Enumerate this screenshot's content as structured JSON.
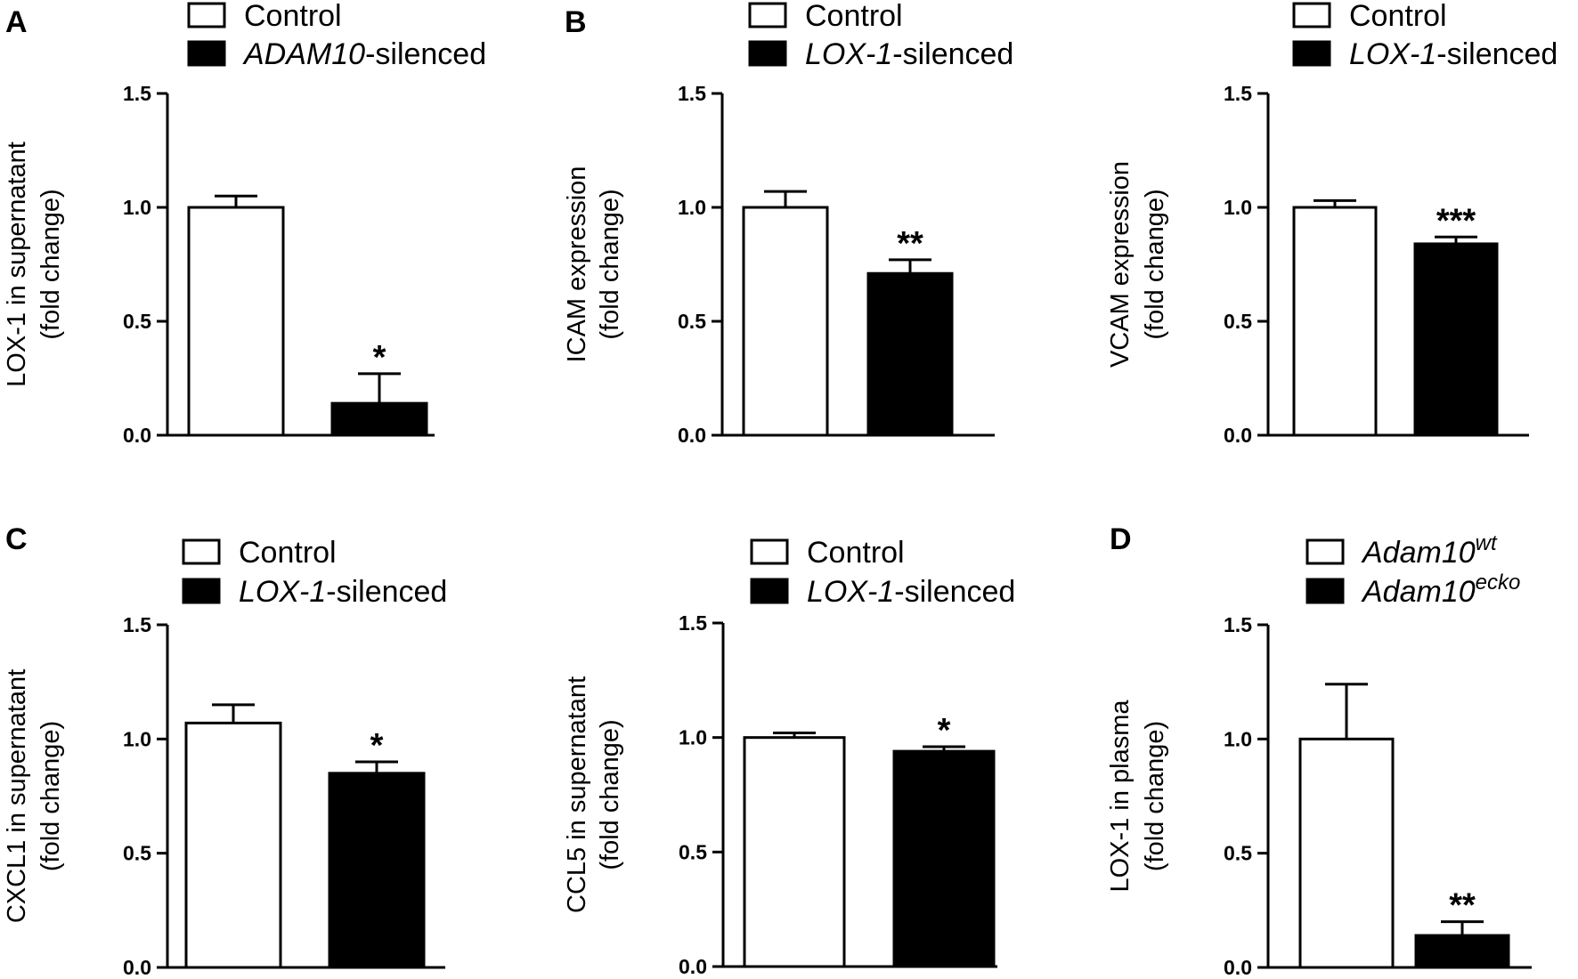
{
  "panel_letters": [
    "A",
    "B",
    "C",
    "D"
  ],
  "colors": {
    "control": "#ffffff",
    "treated": "#000000",
    "stroke": "#000000"
  },
  "chart_data": [
    {
      "type": "bar",
      "panel": "A",
      "ylabel": [
        "LOX-1 in supernatant",
        "(fold change)"
      ],
      "ylim": [
        0,
        1.5
      ],
      "ticks": [
        "0.0",
        "0.5",
        "1.0",
        "1.5"
      ],
      "legend": [
        {
          "italic": "",
          "text": "Control",
          "sup": "",
          "fill": "#ffffff"
        },
        {
          "italic": "ADAM10",
          "text": "-silenced",
          "sup": "",
          "fill": "#000000"
        }
      ],
      "values": [
        1.0,
        0.14
      ],
      "errors": [
        0.05,
        0.13
      ],
      "significance": "*"
    },
    {
      "type": "bar",
      "panel": "B",
      "ylabel": [
        "ICAM expression",
        "(fold change)"
      ],
      "ylim": [
        0,
        1.5
      ],
      "ticks": [
        "0.0",
        "0.5",
        "1.0",
        "1.5"
      ],
      "legend": [
        {
          "italic": "",
          "text": "Control",
          "sup": "",
          "fill": "#ffffff"
        },
        {
          "italic": "LOX-1",
          "text": "-silenced",
          "sup": "",
          "fill": "#000000"
        }
      ],
      "values": [
        1.0,
        0.71
      ],
      "errors": [
        0.07,
        0.06
      ],
      "significance": "**"
    },
    {
      "type": "bar",
      "panel": "",
      "ylabel": [
        "VCAM expression",
        "(fold change)"
      ],
      "ylim": [
        0,
        1.5
      ],
      "ticks": [
        "0.0",
        "0.5",
        "1.0",
        "1.5"
      ],
      "legend": [
        {
          "italic": "",
          "text": "Control",
          "sup": "",
          "fill": "#ffffff"
        },
        {
          "italic": "LOX-1",
          "text": "-silenced",
          "sup": "",
          "fill": "#000000"
        }
      ],
      "values": [
        1.0,
        0.84
      ],
      "errors": [
        0.03,
        0.03
      ],
      "significance": "***"
    },
    {
      "type": "bar",
      "panel": "C",
      "ylabel": [
        "CXCL1 in supernatant",
        "(fold change)"
      ],
      "ylim": [
        0,
        1.5
      ],
      "ticks": [
        "0.0",
        "0.5",
        "1.0",
        "1.5"
      ],
      "legend": [
        {
          "italic": "",
          "text": "Control",
          "sup": "",
          "fill": "#ffffff"
        },
        {
          "italic": "LOX-1",
          "text": "-silenced",
          "sup": "",
          "fill": "#000000"
        }
      ],
      "values": [
        1.07,
        0.85
      ],
      "errors": [
        0.08,
        0.05
      ],
      "significance": "*"
    },
    {
      "type": "bar",
      "panel": "",
      "ylabel": [
        "CCL5 in supernatant",
        "(fold change)"
      ],
      "ylim": [
        0,
        1.5
      ],
      "ticks": [
        "0.0",
        "0.5",
        "1.0",
        "1.5"
      ],
      "legend": [
        {
          "italic": "",
          "text": "Control",
          "sup": "",
          "fill": "#ffffff"
        },
        {
          "italic": "LOX-1",
          "text": "-silenced",
          "sup": "",
          "fill": "#000000"
        }
      ],
      "values": [
        1.0,
        0.94
      ],
      "errors": [
        0.02,
        0.02
      ],
      "significance": "*"
    },
    {
      "type": "bar",
      "panel": "D",
      "ylabel": [
        "LOX-1 in plasma",
        "(fold change)"
      ],
      "ylim": [
        0,
        1.5
      ],
      "ticks": [
        "0.0",
        "0.5",
        "1.0",
        "1.5"
      ],
      "legend": [
        {
          "italic": "Adam10",
          "text": "",
          "sup": "wt",
          "fill": "#ffffff"
        },
        {
          "italic": "Adam10",
          "text": "",
          "sup": "ecko",
          "fill": "#000000"
        }
      ],
      "values": [
        1.0,
        0.14
      ],
      "errors": [
        0.24,
        0.06
      ],
      "significance": "**"
    }
  ]
}
